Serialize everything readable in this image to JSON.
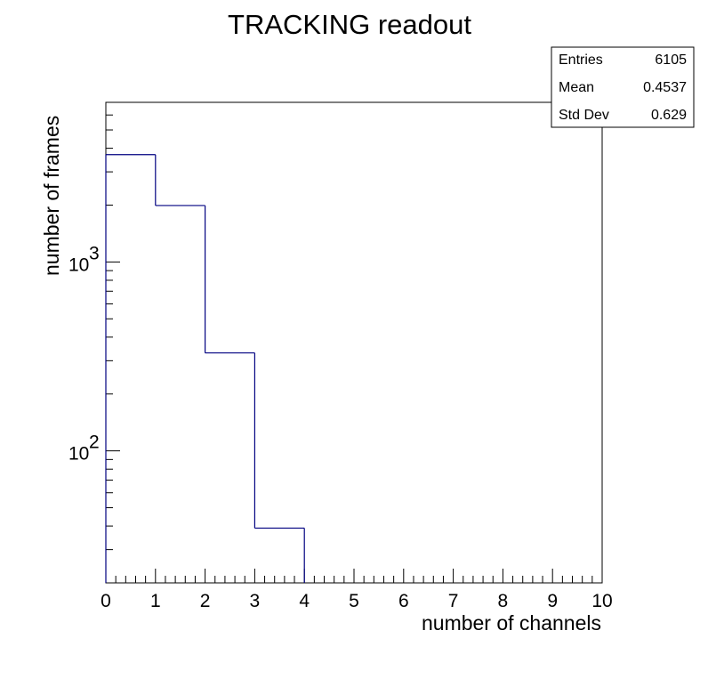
{
  "chart_data": {
    "type": "bar",
    "title": "TRACKING readout",
    "xlabel": "number of channels",
    "ylabel": "number of frames",
    "x_scale": "linear",
    "y_scale": "log",
    "xlim": [
      0,
      10
    ],
    "ylim": [
      20,
      7000
    ],
    "bin_edges": [
      0,
      1,
      2,
      3,
      4,
      5,
      6,
      7,
      8,
      9,
      10
    ],
    "values": [
      3700,
      1990,
      330,
      39,
      0,
      0,
      0,
      0,
      0,
      0
    ],
    "x_ticks": [
      "0",
      "1",
      "2",
      "3",
      "4",
      "5",
      "6",
      "7",
      "8",
      "9",
      "10"
    ],
    "y_ticks": [
      {
        "value": 100,
        "base": "10",
        "exp": "2"
      },
      {
        "value": 1000,
        "base": "10",
        "exp": "3"
      }
    ],
    "line_color": "#000080",
    "grid": false,
    "legend": "none",
    "stats_box": {
      "placement": "top-right",
      "rows": [
        {
          "label": "Entries",
          "value": "6105"
        },
        {
          "label": "Mean",
          "value": "0.4537"
        },
        {
          "label": "Std Dev",
          "value": "0.629"
        }
      ]
    }
  }
}
